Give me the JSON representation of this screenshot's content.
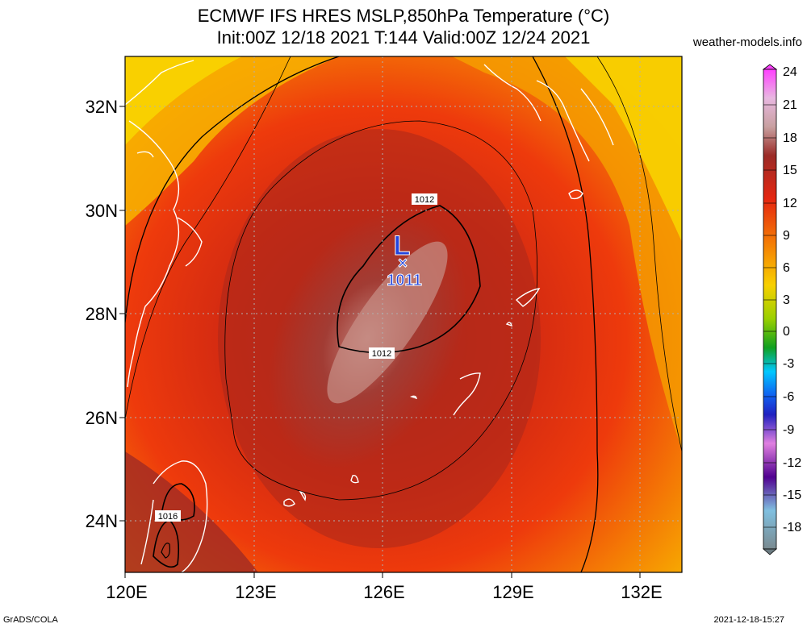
{
  "title_line1": "ECMWF IFS HRES MSLP,850hPa Temperature (°C)",
  "title_line2": "Init:00Z 12/18 2021 T:144 Valid:00Z 12/24 2021",
  "site": "weather-models.info",
  "footer_left": "GrADS/COLA",
  "footer_right": "2021-12-18-15:27",
  "lat_labels": [
    "32N",
    "30N",
    "28N",
    "26N",
    "24N"
  ],
  "lon_labels": [
    "120E",
    "123E",
    "126E",
    "129E",
    "132E"
  ],
  "colorbar_labels": [
    "24",
    "21",
    "18",
    "15",
    "12",
    "9",
    "6",
    "3",
    "0",
    "-3",
    "-6",
    "-9",
    "-12",
    "-15",
    "-18"
  ],
  "low_symbol": "L",
  "low_marker": "×",
  "low_value": "1011",
  "isobar_labels": [
    "1012",
    "1012",
    "1016"
  ],
  "colors": {
    "warm_dark": "#9a2d2a",
    "red": "#e52b10",
    "orange": "#f07a00",
    "yellow": "#f8d000",
    "low_label": "#2244dd"
  }
}
